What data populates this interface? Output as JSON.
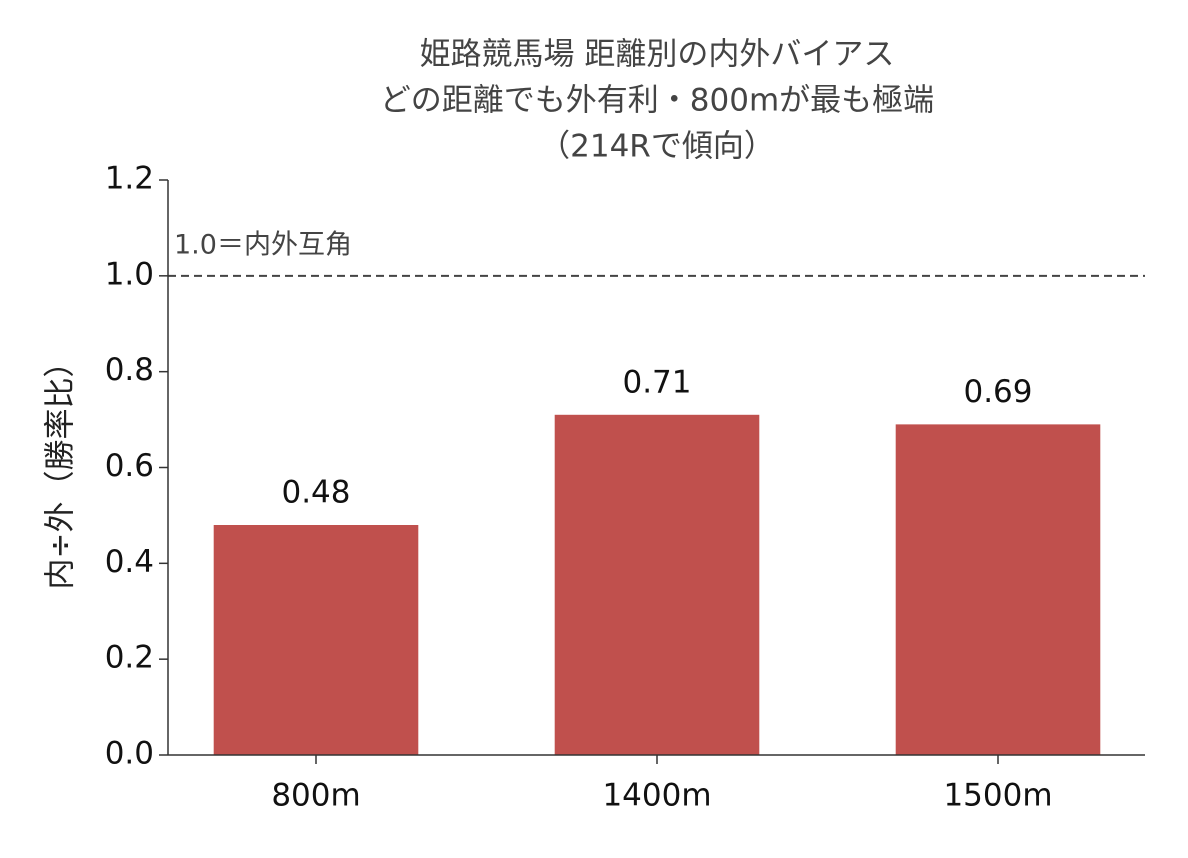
{
  "chart_data": {
    "type": "bar",
    "title": [
      "姫路競馬場 距離別の内外バイアス",
      "どの距離でも外有利・800mが最も極端",
      "（214Rで傾向）"
    ],
    "ylabel": "内÷外（勝率比）",
    "categories": [
      "800m",
      "1400m",
      "1500m"
    ],
    "values": [
      0.48,
      0.71,
      0.69
    ],
    "color": "#c0504d",
    "ylim": [
      0,
      1.2
    ],
    "yticks": [
      {
        "value": 0,
        "label": "0.0"
      },
      0.2,
      0.4,
      0.6,
      0.8,
      {
        "value": 1,
        "label": "1.0"
      },
      1.2
    ],
    "reference_line": {
      "value": 1,
      "label": "1.0＝内外互角",
      "style": "dashed"
    },
    "grid": false
  }
}
